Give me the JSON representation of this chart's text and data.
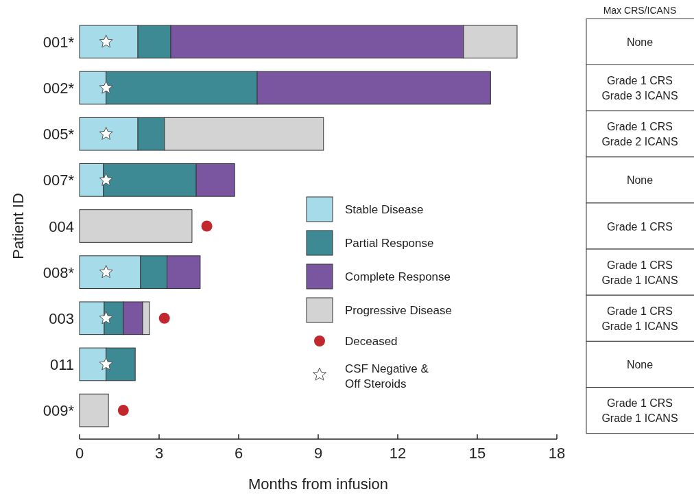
{
  "chart_data": {
    "type": "bar",
    "orientation": "horizontal",
    "stacked": true,
    "xlabel": "Months from infusion",
    "ylabel": "Patient ID",
    "categories": [
      "001*",
      "002*",
      "005*",
      "007*",
      "004",
      "008*",
      "003",
      "011",
      "009*"
    ],
    "series": [
      {
        "name": "Stable Disease",
        "color": "#a6dbe9",
        "values": [
          2.2,
          1.0,
          2.2,
          0.9,
          null,
          2.3,
          0.93,
          1.0,
          null
        ]
      },
      {
        "name": "Partial Response",
        "color": "#3e8a94",
        "values": [
          1.24,
          5.7,
          1.0,
          3.5,
          null,
          1.0,
          0.72,
          1.1,
          null
        ]
      },
      {
        "name": "Complete Response",
        "color": "#7a56a0",
        "values": [
          11.04,
          8.8,
          null,
          1.45,
          null,
          1.25,
          0.73,
          null,
          null
        ]
      },
      {
        "name": "Progressive Disease",
        "color": "#d3d3d3",
        "values": [
          2.02,
          null,
          6.0,
          null,
          4.24,
          null,
          0.26,
          null,
          1.09
        ]
      },
      {
        "name": "Deceased",
        "type": "scatter",
        "marker": "circle",
        "color": "#c0282d",
        "values": [
          null,
          null,
          null,
          null,
          4.8,
          null,
          3.2,
          null,
          1.65
        ]
      },
      {
        "name": "CSF Negative & Off Steroids",
        "type": "scatter",
        "marker": "star",
        "color": "#ffffff",
        "values": [
          1,
          1,
          1,
          1,
          null,
          1,
          1,
          1,
          null
        ]
      }
    ],
    "xlim": [
      0,
      18
    ],
    "xticks": [
      0,
      3,
      6,
      9,
      12,
      15,
      18
    ],
    "legend": "center",
    "grid": false,
    "annotations": [
      "Max CRS/ICANS",
      "None",
      "Grade 1 CRS\nGrade 3 ICANS",
      "Grade 1 CRS\nGrade 2 ICANS",
      "None",
      "Grade 1 CRS",
      "Grade 1 CRS\nGrade 1 ICANS",
      "Grade 1 CRS\nGrade 1 ICANS",
      "None",
      "Grade 1 CRS\nGrade 1 ICANS"
    ]
  }
}
